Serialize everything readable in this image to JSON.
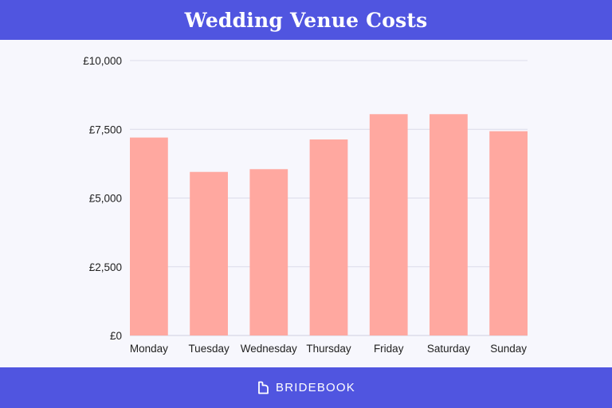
{
  "header": {
    "title": "Wedding Venue Costs"
  },
  "footer": {
    "brand": "BRIDEBOOK",
    "logo_icon": "bridebook-logo-icon"
  },
  "colors": {
    "band": "#5055e0",
    "bar": "#ffa8a0",
    "grid": "#dcdcea",
    "background": "#f7f7fd"
  },
  "chart_data": {
    "type": "bar",
    "title": "Wedding Venue Costs",
    "xlabel": "",
    "ylabel": "",
    "categories": [
      "Monday",
      "Tuesday",
      "Wednesday",
      "Thursday",
      "Friday",
      "Saturday",
      "Sunday"
    ],
    "values": [
      7200,
      5950,
      6050,
      7130,
      8050,
      8050,
      7430
    ],
    "ylim": [
      0,
      10000
    ],
    "yticks": [
      0,
      2500,
      5000,
      7500,
      10000
    ],
    "ytick_labels": [
      "£0",
      "£2,500",
      "£5,000",
      "£7,500",
      "£10,000"
    ],
    "grid": true,
    "legend": "none"
  }
}
